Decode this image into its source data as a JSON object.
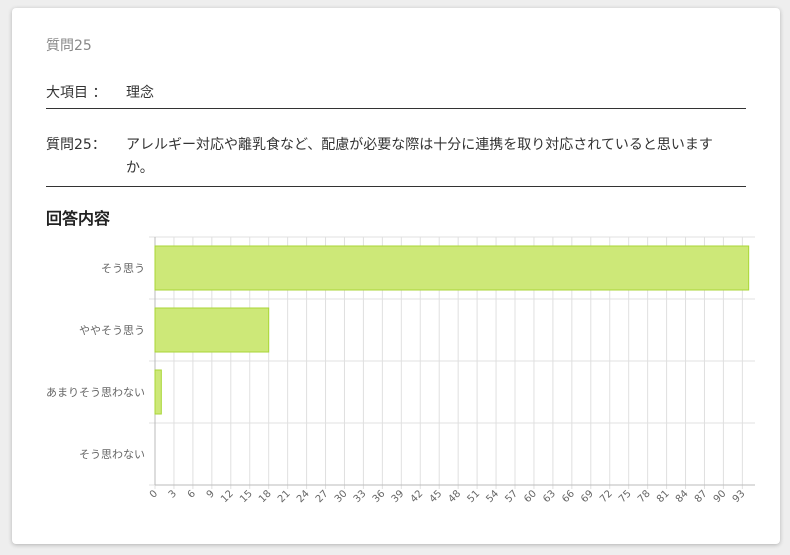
{
  "question": {
    "header": "質問25",
    "category_label": "大項目 ：",
    "category_value": "理念",
    "question_label": "質問25：",
    "question_text": "アレルギー対応や離乳食など、配慮が必要な際は十分に連携を取り対応されていると思いますか。"
  },
  "section_title": "回答内容",
  "chart_data": {
    "type": "bar",
    "orientation": "horizontal",
    "categories": [
      "そう思う",
      "ややそう思う",
      "あまりそう思わない",
      "そう思わない"
    ],
    "values": [
      94,
      18,
      1,
      0
    ],
    "xlim": [
      0,
      95
    ],
    "ticks": [
      0,
      3,
      6,
      9,
      12,
      15,
      18,
      21,
      24,
      27,
      30,
      33,
      36,
      39,
      42,
      45,
      48,
      51,
      54,
      57,
      60,
      63,
      66,
      69,
      72,
      75,
      78,
      81,
      84,
      87,
      90,
      93
    ],
    "grid": true,
    "bar_fill": "#cde878",
    "bar_stroke": "#a9d636"
  }
}
